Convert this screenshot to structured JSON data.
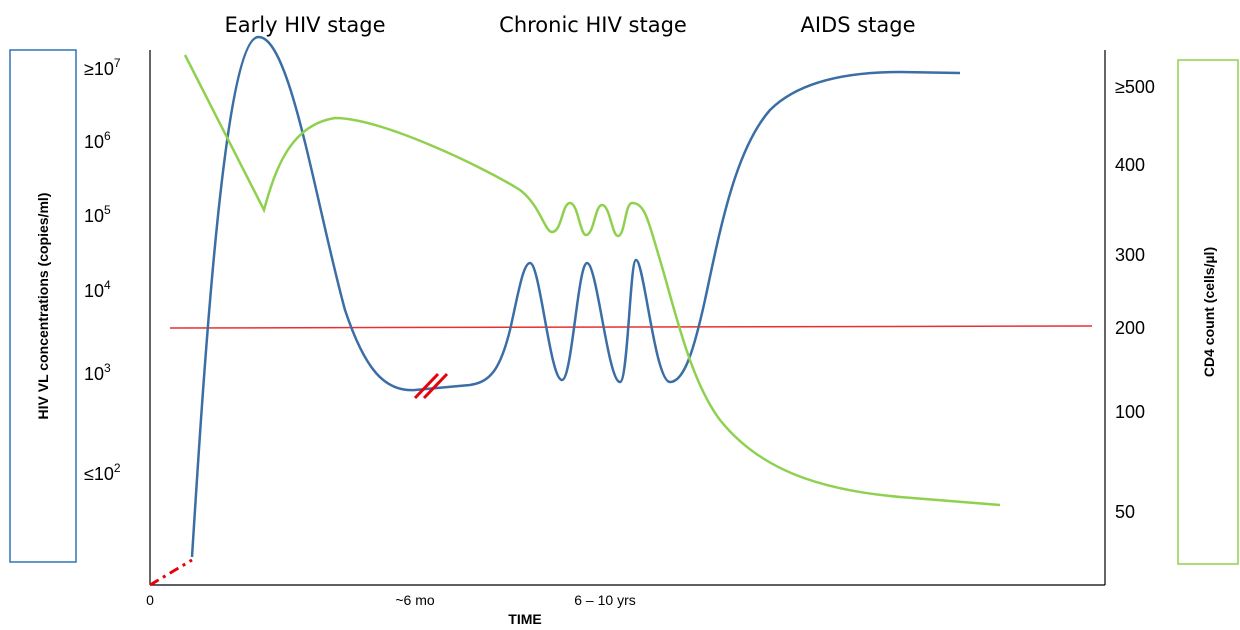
{
  "stages": [
    "Early HIV stage",
    "Chronic HIV stage",
    "AIDS stage"
  ],
  "left_axis": {
    "label": "HIV VL concentrations (copies/ml)",
    "ticks": [
      {
        "base": "≥10",
        "exp": "7"
      },
      {
        "base": "10",
        "exp": "6"
      },
      {
        "base": "10",
        "exp": "5"
      },
      {
        "base": "10",
        "exp": "4"
      },
      {
        "base": "10",
        "exp": "3"
      },
      {
        "base": "≤10",
        "exp": "2"
      }
    ]
  },
  "right_axis": {
    "label": "CD4 count (cells/µl)",
    "ticks": [
      "≥500",
      "400",
      "300",
      "200",
      "100",
      "50"
    ]
  },
  "x_axis": {
    "label": "TIME",
    "ticks": [
      "0",
      "~6 mo",
      "6 – 10 yrs"
    ]
  }
}
